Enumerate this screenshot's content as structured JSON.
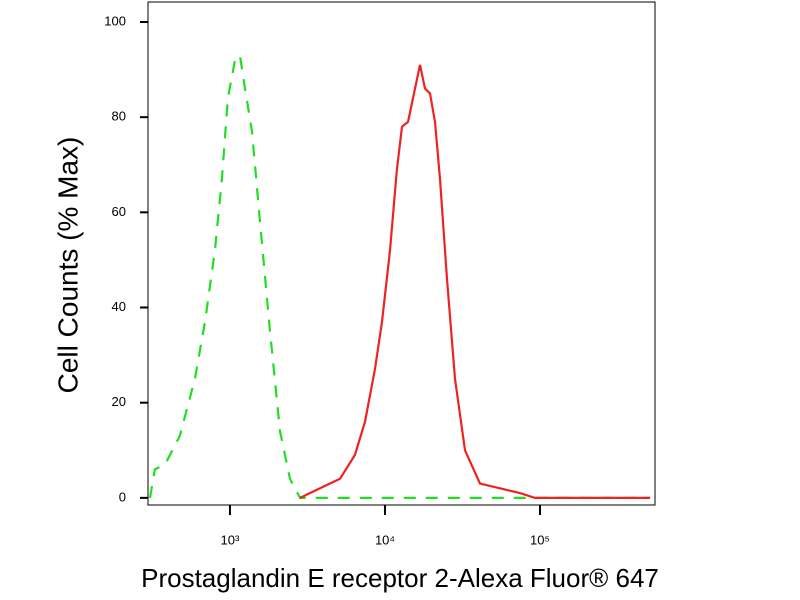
{
  "chart_data": {
    "type": "line",
    "x_label": "Prostaglandin E receptor 2-Alexa Fluor® 647",
    "y_label": "Cell Counts (% Max)",
    "xscale": "log",
    "xlim": [
      296,
      552000
    ],
    "ylim": [
      -1.5,
      104.2
    ],
    "xticks": [
      {
        "value": 1000,
        "label": "10³"
      },
      {
        "value": 10000,
        "label": "10⁴"
      },
      {
        "value": 100000,
        "label": "10⁵"
      }
    ],
    "yticks": [
      0,
      20,
      40,
      60,
      80,
      100
    ],
    "series": [
      {
        "color": "#22dd22",
        "style": "dashed",
        "x": [
          305,
          328,
          381,
          475,
          594,
          690,
          800,
          887,
          970,
          1077,
          1160,
          1250,
          1387,
          1562,
          1812,
          2102,
          2438,
          2830,
          513000
        ],
        "values": [
          0,
          6,
          7,
          13,
          25,
          37,
          52,
          67,
          84,
          92,
          93,
          86,
          77,
          58,
          35,
          14,
          4,
          0,
          0
        ]
      },
      {
        "color": "#ee2222",
        "style": "solid",
        "x": [
          2830,
          3811,
          5129,
          6397,
          7430,
          8610,
          9570,
          10780,
          11940,
          12870,
          14070,
          15160,
          16820,
          18110,
          19510,
          21030,
          22640,
          25120,
          28300,
          32830,
          41020,
          55200,
          74300,
          92900,
          513000
        ],
        "values": [
          0,
          2,
          4,
          9,
          16,
          27,
          37,
          52,
          69,
          78,
          79,
          84,
          91,
          86,
          85,
          79,
          67,
          46,
          25,
          10,
          3,
          2,
          1,
          0,
          0
        ]
      }
    ]
  }
}
